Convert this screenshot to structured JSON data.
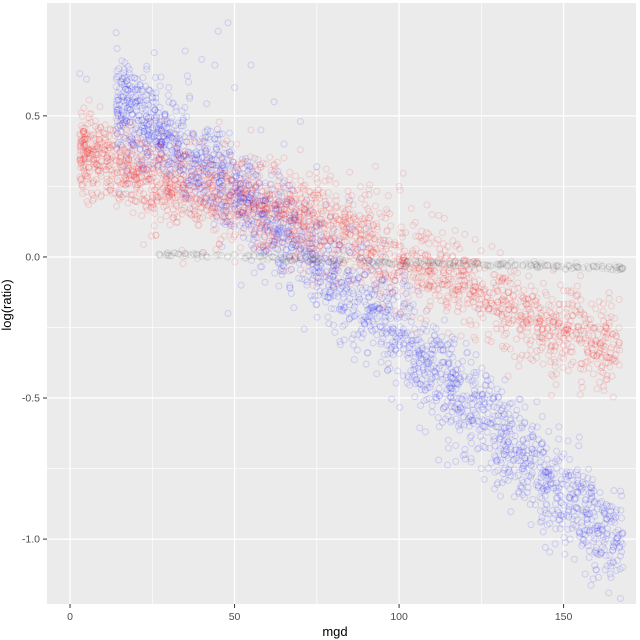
{
  "chart_data": {
    "type": "scatter",
    "title": "",
    "xlabel": "mgd",
    "ylabel": "log(ratio)",
    "xlim": [
      -7,
      172
    ],
    "ylim": [
      -1.23,
      0.9
    ],
    "x_ticks": [
      0,
      50,
      100,
      150
    ],
    "x_tick_labels": [
      "0",
      "50",
      "100",
      "150"
    ],
    "y_ticks": [
      -1.0,
      -0.5,
      0.0,
      0.5
    ],
    "y_tick_labels": [
      "-1.0",
      "-0.5",
      "0.0",
      "0.5"
    ],
    "grid": true,
    "panel_background": "#EBEBEB",
    "grid_color": "#FFFFFF",
    "legend": "none",
    "series": [
      {
        "color": "#0000FF",
        "alpha": 0.12,
        "trend": [
          [
            14,
            0.55
          ],
          [
            40,
            0.32
          ],
          [
            60,
            0.12
          ],
          [
            80,
            -0.07
          ],
          [
            100,
            -0.27
          ],
          [
            120,
            -0.5
          ],
          [
            145,
            -0.8
          ],
          [
            168,
            -1.03
          ]
        ],
        "spread": 0.09,
        "points": [
          [
            15,
            0.54
          ],
          [
            18,
            0.52
          ],
          [
            21,
            0.5
          ],
          [
            24,
            0.47
          ],
          [
            27,
            0.45
          ],
          [
            30,
            0.42
          ],
          [
            33,
            0.4
          ],
          [
            36,
            0.37
          ],
          [
            38,
            0.35
          ],
          [
            40,
            0.33
          ],
          [
            42,
            0.31
          ],
          [
            44,
            0.29
          ],
          [
            46,
            0.27
          ],
          [
            48,
            0.25
          ],
          [
            50,
            0.23
          ],
          [
            52,
            0.21
          ],
          [
            54,
            0.19
          ],
          [
            56,
            0.17
          ],
          [
            58,
            0.15
          ],
          [
            60,
            0.13
          ],
          [
            62,
            0.11
          ],
          [
            64,
            0.09
          ],
          [
            66,
            0.07
          ],
          [
            68,
            0.05
          ],
          [
            70,
            0.03
          ],
          [
            72,
            0.01
          ],
          [
            74,
            -0.01
          ],
          [
            76,
            -0.03
          ],
          [
            78,
            -0.05
          ],
          [
            80,
            -0.07
          ],
          [
            82,
            -0.09
          ],
          [
            84,
            -0.11
          ],
          [
            86,
            -0.13
          ],
          [
            88,
            -0.15
          ],
          [
            90,
            -0.17
          ],
          [
            92,
            -0.19
          ],
          [
            94,
            -0.21
          ],
          [
            96,
            -0.23
          ],
          [
            98,
            -0.25
          ],
          [
            100,
            -0.27
          ],
          [
            35,
            0.73
          ],
          [
            45,
            0.8
          ],
          [
            48,
            0.83
          ],
          [
            40,
            0.7
          ],
          [
            50,
            0.6
          ],
          [
            55,
            0.68
          ],
          [
            62,
            0.55
          ],
          [
            70,
            0.48
          ],
          [
            58,
            0.45
          ],
          [
            65,
            0.4
          ],
          [
            75,
            0.32
          ],
          [
            85,
            0.2
          ],
          [
            90,
            0.1
          ],
          [
            95,
            0.0
          ],
          [
            48,
            -0.2
          ],
          [
            52,
            -0.1
          ],
          [
            68,
            -0.18
          ],
          [
            82,
            -0.3
          ],
          [
            90,
            -0.38
          ],
          [
            105,
            -0.45
          ],
          [
            110,
            -0.55
          ],
          [
            115,
            -0.65
          ],
          [
            120,
            -0.7
          ],
          [
            125,
            -0.75
          ],
          [
            130,
            -0.8
          ],
          [
            135,
            -0.85
          ],
          [
            140,
            -0.78
          ],
          [
            143,
            -0.9
          ],
          [
            145,
            -0.95
          ],
          [
            150,
            -0.88
          ],
          [
            152,
            -1.0
          ],
          [
            155,
            -0.98
          ],
          [
            160,
            -1.05
          ],
          [
            165,
            -1.08
          ],
          [
            168,
            -1.1
          ],
          [
            168,
            -0.98
          ],
          [
            108,
            -0.62
          ],
          [
            112,
            -0.72
          ],
          [
            118,
            -0.6
          ],
          [
            122,
            -0.66
          ],
          [
            128,
            -0.73
          ],
          [
            132,
            -0.7
          ],
          [
            138,
            -0.76
          ],
          [
            147,
            -0.82
          ],
          [
            3,
            0.65
          ],
          [
            5,
            0.63
          ],
          [
            30,
            0.6
          ],
          [
            25,
            0.58
          ],
          [
            36,
            0.62
          ],
          [
            44,
            0.68
          ]
        ]
      },
      {
        "color": "#FF0000",
        "alpha": 0.12,
        "trend": [
          [
            3,
            0.38
          ],
          [
            30,
            0.26
          ],
          [
            60,
            0.17
          ],
          [
            80,
            0.1
          ],
          [
            100,
            0.0
          ],
          [
            120,
            -0.1
          ],
          [
            140,
            -0.22
          ],
          [
            167,
            -0.32
          ]
        ],
        "spread": 0.08,
        "points": [
          [
            3,
            0.36
          ],
          [
            8,
            0.33
          ],
          [
            12,
            0.31
          ],
          [
            16,
            0.3
          ],
          [
            20,
            0.28
          ],
          [
            25,
            0.25
          ],
          [
            30,
            0.23
          ],
          [
            35,
            0.22
          ],
          [
            40,
            0.21
          ],
          [
            45,
            0.2
          ],
          [
            50,
            0.19
          ],
          [
            55,
            0.18
          ],
          [
            60,
            0.17
          ],
          [
            65,
            0.15
          ],
          [
            70,
            0.13
          ],
          [
            75,
            0.11
          ],
          [
            80,
            0.1
          ],
          [
            85,
            0.08
          ],
          [
            90,
            0.05
          ],
          [
            95,
            0.02
          ],
          [
            100,
            0.0
          ],
          [
            105,
            -0.03
          ],
          [
            110,
            -0.06
          ],
          [
            115,
            -0.08
          ],
          [
            120,
            -0.1
          ],
          [
            125,
            -0.13
          ],
          [
            130,
            -0.16
          ],
          [
            135,
            -0.19
          ],
          [
            140,
            -0.22
          ],
          [
            145,
            -0.25
          ],
          [
            150,
            -0.27
          ],
          [
            155,
            -0.29
          ],
          [
            160,
            -0.3
          ],
          [
            165,
            -0.31
          ],
          [
            167,
            -0.33
          ],
          [
            12,
            0.27
          ],
          [
            25,
            0.21
          ],
          [
            40,
            0.4
          ],
          [
            55,
            0.45
          ],
          [
            70,
            0.38
          ],
          [
            85,
            0.3
          ],
          [
            100,
            0.25
          ],
          [
            110,
            0.15
          ],
          [
            120,
            0.08
          ],
          [
            135,
            -0.05
          ],
          [
            150,
            -0.12
          ],
          [
            160,
            -0.35
          ],
          [
            140,
            -0.36
          ],
          [
            128,
            -0.3
          ],
          [
            115,
            -0.27
          ],
          [
            95,
            -0.18
          ],
          [
            80,
            -0.1
          ],
          [
            65,
            -0.05
          ]
        ]
      },
      {
        "color": "#000000",
        "alpha": 0.07,
        "trend": [
          [
            27,
            0.01
          ],
          [
            60,
            0.0
          ],
          [
            100,
            -0.02
          ],
          [
            140,
            -0.03
          ],
          [
            168,
            -0.04
          ]
        ],
        "spread": 0.005,
        "points": [
          [
            27,
            0.01
          ],
          [
            33,
            0.01
          ],
          [
            40,
            0.01
          ],
          [
            46,
            0.005
          ],
          [
            52,
            0.003
          ],
          [
            58,
            0.0
          ],
          [
            64,
            0.0
          ],
          [
            70,
            -0.002
          ],
          [
            76,
            -0.005
          ],
          [
            82,
            -0.008
          ],
          [
            88,
            -0.01
          ],
          [
            94,
            -0.013
          ],
          [
            100,
            -0.016
          ],
          [
            106,
            -0.018
          ],
          [
            112,
            -0.02
          ],
          [
            118,
            -0.022
          ],
          [
            124,
            -0.024
          ],
          [
            130,
            -0.026
          ],
          [
            136,
            -0.028
          ],
          [
            142,
            -0.03
          ],
          [
            148,
            -0.032
          ],
          [
            154,
            -0.034
          ],
          [
            160,
            -0.036
          ],
          [
            166,
            -0.038
          ],
          [
            168,
            -0.04
          ]
        ]
      }
    ]
  }
}
